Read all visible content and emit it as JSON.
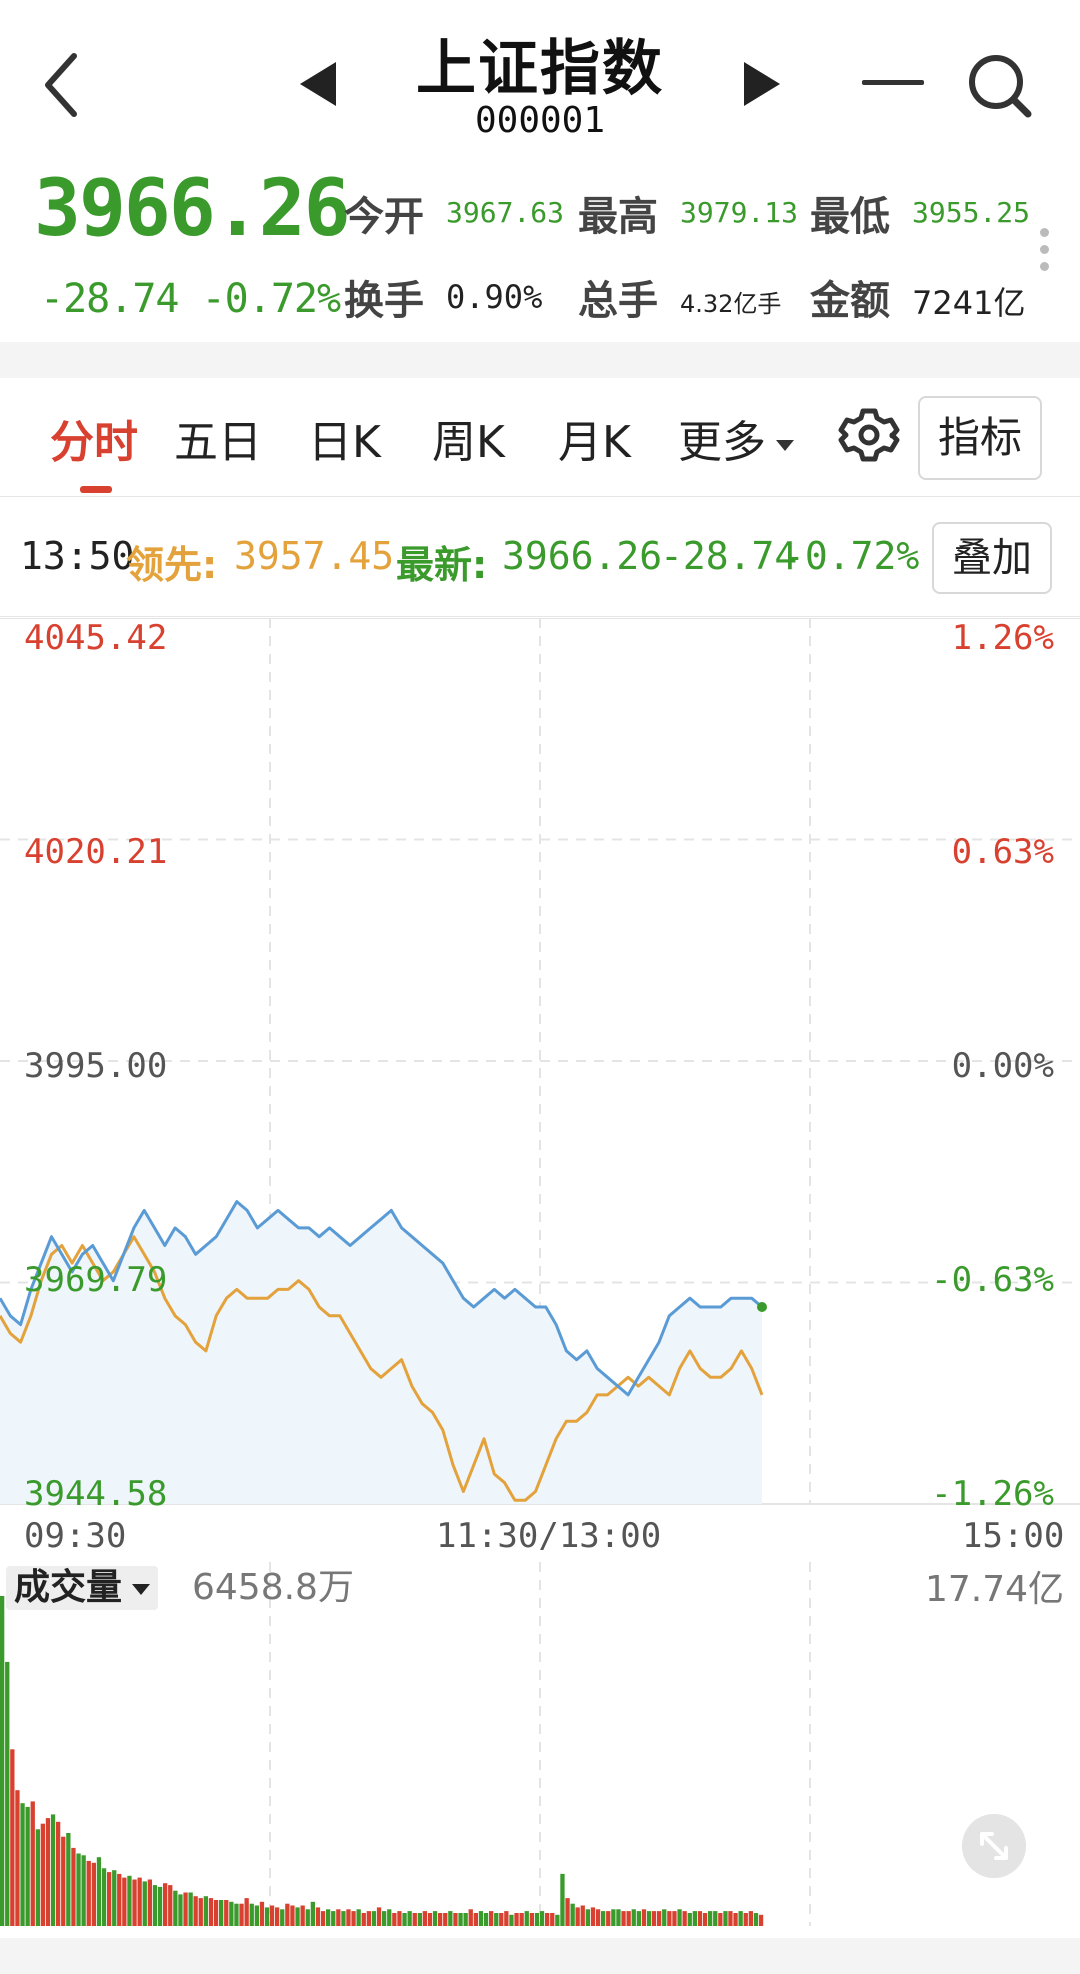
{
  "header": {
    "title": "上证指数",
    "code": "000001"
  },
  "quote": {
    "price": "3966.26",
    "change": "-28.74",
    "change_pct": "-0.72%",
    "open_label": "今开",
    "open_value": "3967.63",
    "high_label": "最高",
    "high_value": "3979.13",
    "low_label": "最低",
    "low_value": "3955.25",
    "turnover_label": "换手",
    "turnover_value": "0.90%",
    "volume_label": "总手",
    "volume_value": "4.32亿手",
    "amount_label": "金额",
    "amount_value": "7241亿"
  },
  "tabs": [
    {
      "label": "分时",
      "active": true
    },
    {
      "label": "五日"
    },
    {
      "label": "日K"
    },
    {
      "label": "周K"
    },
    {
      "label": "月K"
    },
    {
      "label": "更多"
    }
  ],
  "indicator_button": "指标",
  "info_row": {
    "time": "13:50",
    "lead_label": "领先:",
    "lead_value": "3957.45",
    "latest_label": "最新:",
    "latest_value": "3966.26",
    "latest_change": "-28.74",
    "latest_pct": "-0.72%",
    "overlay_button": "叠加"
  },
  "colors": {
    "up": "#d8412f",
    "down": "#3a9a2c",
    "price_line": "#5a9bd5",
    "lead_line": "#e3a23b",
    "fill": "#eef5fb"
  },
  "chart_data": {
    "type": "line",
    "y_labels_left": [
      "4045.42",
      "4020.21",
      "3995.00",
      "3969.79",
      "3944.58"
    ],
    "y_labels_right": [
      "1.26%",
      "0.63%",
      "0.00%",
      "-0.63%",
      "-1.26%"
    ],
    "x_labels": [
      "09:30",
      "11:30/13:00",
      "15:00"
    ],
    "ylim": [
      3944.58,
      4045.42
    ],
    "series": [
      {
        "color": "price_line",
        "values": [
          3968,
          3966,
          3965,
          3969,
          3972,
          3975,
          3973,
          3971,
          3973,
          3974,
          3972,
          3970,
          3973,
          3976,
          3978,
          3976,
          3974,
          3976,
          3975,
          3973,
          3974,
          3975,
          3977,
          3979,
          3978,
          3976,
          3977,
          3978,
          3977,
          3976,
          3976,
          3975,
          3976,
          3975,
          3974,
          3975,
          3976,
          3977,
          3978,
          3976,
          3975,
          3974,
          3973,
          3972,
          3970,
          3968,
          3967,
          3968,
          3969,
          3968,
          3969,
          3968,
          3967,
          3967,
          3965,
          3962,
          3961,
          3962,
          3960,
          3959,
          3958,
          3957,
          3959,
          3961,
          3963,
          3966,
          3967,
          3968,
          3967,
          3967,
          3967,
          3968,
          3968,
          3968,
          3967
        ]
      },
      {
        "name": "领先",
        "color": "lead_line",
        "values": [
          3966,
          3964,
          3963,
          3966,
          3970,
          3973,
          3974,
          3972,
          3974,
          3972,
          3970,
          3971,
          3973,
          3975,
          3973,
          3971,
          3968,
          3966,
          3965,
          3963,
          3962,
          3966,
          3968,
          3969,
          3968,
          3968,
          3968,
          3969,
          3969,
          3970,
          3969,
          3967,
          3966,
          3966,
          3964,
          3962,
          3960,
          3959,
          3960,
          3961,
          3958,
          3956,
          3955,
          3953,
          3949,
          3946,
          3949,
          3952,
          3948,
          3947,
          3945,
          3945,
          3946,
          3949,
          3952,
          3954,
          3954,
          3955,
          3957,
          3957,
          3958,
          3959,
          3958,
          3959,
          3958,
          3957,
          3960,
          3962,
          3960,
          3959,
          3959,
          3960,
          3962,
          3960,
          3957
        ]
      }
    ]
  },
  "volume": {
    "label": "成交量",
    "current": "6458.8万",
    "max": "17.74亿",
    "bars": [
      17.74,
      14.2,
      9.5,
      7.3,
      6.6,
      6.4,
      6.7,
      5.2,
      5.5,
      5.8,
      6.0,
      5.6,
      4.8,
      5.0,
      4.2,
      3.9,
      3.8,
      3.5,
      3.4,
      3.7,
      3.1,
      2.9,
      3.0,
      2.8,
      2.6,
      2.7,
      2.5,
      2.6,
      2.4,
      2.5,
      2.2,
      2.1,
      2.3,
      2.2,
      1.9,
      1.7,
      1.8,
      1.8,
      1.6,
      1.5,
      1.6,
      1.5,
      1.4,
      1.4,
      1.4,
      1.3,
      1.2,
      1.2,
      1.5,
      1.2,
      1.1,
      1.3,
      1.0,
      1.1,
      1.0,
      0.9,
      1.2,
      1.1,
      1.0,
      1.1,
      0.9,
      1.3,
      1.0,
      0.8,
      0.9,
      0.8,
      0.9,
      0.8,
      0.9,
      0.8,
      0.9,
      0.7,
      0.8,
      0.8,
      1.0,
      0.8,
      0.9,
      0.7,
      0.8,
      0.7,
      0.8,
      0.7,
      0.7,
      0.8,
      0.7,
      0.8,
      0.7,
      0.7,
      0.8,
      0.7,
      0.7,
      0.7,
      0.9,
      0.7,
      0.8,
      0.7,
      0.8,
      0.7,
      0.7,
      0.8,
      0.6,
      0.7,
      0.7,
      0.8,
      0.7,
      0.7,
      0.8,
      0.7,
      0.7,
      0.6,
      2.8,
      1.5,
      1.2,
      1.0,
      1.1,
      0.9,
      1.0,
      0.9,
      0.8,
      0.8,
      0.9,
      0.9,
      0.8,
      0.8,
      0.9,
      0.8,
      0.9,
      0.8,
      0.8,
      0.8,
      0.9,
      0.8,
      0.8,
      0.9,
      0.8,
      0.7,
      0.8,
      0.8,
      0.7,
      0.8,
      0.8,
      0.7,
      0.8,
      0.8,
      0.7,
      0.8,
      0.7,
      0.8,
      0.7,
      0.6
    ]
  }
}
